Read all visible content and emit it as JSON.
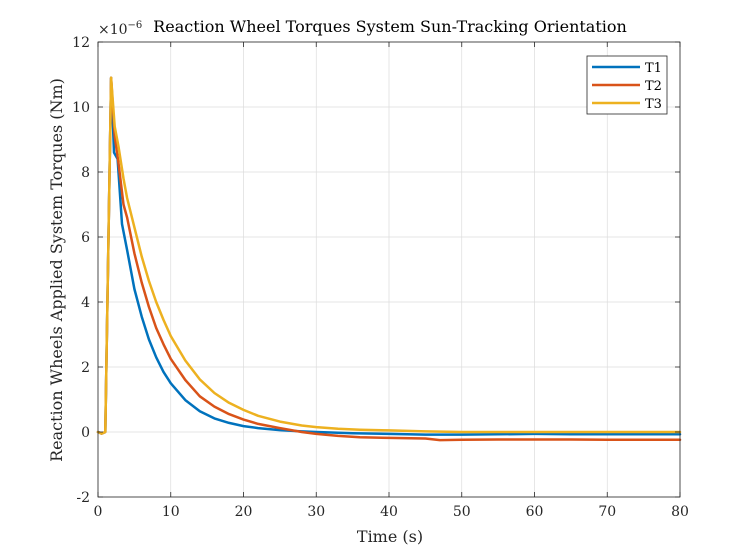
{
  "chart_data": {
    "type": "line",
    "title": "Reaction Wheel Torques System Sun-Tracking Orientation",
    "xlabel": "Time (s)",
    "ylabel": "Reaction Wheels Applied System Torques (Nm)",
    "y_exponent": "×10",
    "y_exponent_power": "−6",
    "xlim": [
      0,
      80
    ],
    "ylim": [
      -2,
      12
    ],
    "xticks": [
      "0",
      "10",
      "20",
      "30",
      "40",
      "50",
      "60",
      "70",
      "80"
    ],
    "yticks": [
      "-2",
      "0",
      "2",
      "4",
      "6",
      "8",
      "10",
      "12"
    ],
    "grid": true,
    "legend": "top-right",
    "series": [
      {
        "name": "T1",
        "color": "#0072BD",
        "points": [
          [
            0,
            0
          ],
          [
            0.5,
            -0.05
          ],
          [
            1.0,
            0.0
          ],
          [
            1.8,
            10.9
          ],
          [
            2.2,
            8.6
          ],
          [
            2.7,
            8.4
          ],
          [
            3.3,
            6.4
          ],
          [
            4,
            5.6
          ],
          [
            5,
            4.4
          ],
          [
            6,
            3.55
          ],
          [
            7,
            2.85
          ],
          [
            8,
            2.3
          ],
          [
            9,
            1.85
          ],
          [
            10,
            1.5
          ],
          [
            12,
            0.98
          ],
          [
            14,
            0.64
          ],
          [
            16,
            0.42
          ],
          [
            18,
            0.28
          ],
          [
            20,
            0.18
          ],
          [
            22,
            0.12
          ],
          [
            25,
            0.06
          ],
          [
            28,
            0.02
          ],
          [
            30,
            0.0
          ],
          [
            35,
            -0.04
          ],
          [
            40,
            -0.06
          ],
          [
            45,
            -0.08
          ],
          [
            50,
            -0.08
          ],
          [
            55,
            -0.07
          ],
          [
            60,
            -0.06
          ],
          [
            65,
            -0.07
          ],
          [
            70,
            -0.07
          ],
          [
            75,
            -0.07
          ],
          [
            80,
            -0.07
          ]
        ]
      },
      {
        "name": "T2",
        "color": "#D95319",
        "points": [
          [
            0,
            0
          ],
          [
            0.5,
            -0.05
          ],
          [
            1.0,
            0.0
          ],
          [
            1.8,
            10.9
          ],
          [
            2.3,
            9.1
          ],
          [
            2.8,
            8.3
          ],
          [
            3.5,
            7.0
          ],
          [
            4,
            6.6
          ],
          [
            5,
            5.5
          ],
          [
            6,
            4.6
          ],
          [
            7,
            3.85
          ],
          [
            8,
            3.2
          ],
          [
            9,
            2.7
          ],
          [
            10,
            2.25
          ],
          [
            12,
            1.6
          ],
          [
            14,
            1.1
          ],
          [
            16,
            0.78
          ],
          [
            18,
            0.55
          ],
          [
            20,
            0.38
          ],
          [
            22,
            0.25
          ],
          [
            25,
            0.12
          ],
          [
            28,
            0.0
          ],
          [
            30,
            -0.06
          ],
          [
            33,
            -0.12
          ],
          [
            36,
            -0.16
          ],
          [
            40,
            -0.18
          ],
          [
            45,
            -0.2
          ],
          [
            47,
            -0.25
          ],
          [
            50,
            -0.24
          ],
          [
            55,
            -0.23
          ],
          [
            60,
            -0.23
          ],
          [
            65,
            -0.23
          ],
          [
            70,
            -0.24
          ],
          [
            75,
            -0.24
          ],
          [
            80,
            -0.24
          ]
        ]
      },
      {
        "name": "T3",
        "color": "#EDB120",
        "points": [
          [
            0,
            0
          ],
          [
            0.5,
            -0.05
          ],
          [
            1.0,
            0.0
          ],
          [
            1.8,
            10.9
          ],
          [
            2.3,
            9.4
          ],
          [
            2.8,
            8.8
          ],
          [
            3.5,
            7.8
          ],
          [
            4,
            7.2
          ],
          [
            5,
            6.3
          ],
          [
            6,
            5.4
          ],
          [
            7,
            4.65
          ],
          [
            8,
            4.0
          ],
          [
            9,
            3.45
          ],
          [
            10,
            2.95
          ],
          [
            12,
            2.2
          ],
          [
            14,
            1.62
          ],
          [
            16,
            1.2
          ],
          [
            18,
            0.9
          ],
          [
            20,
            0.68
          ],
          [
            22,
            0.5
          ],
          [
            25,
            0.32
          ],
          [
            28,
            0.2
          ],
          [
            30,
            0.15
          ],
          [
            33,
            0.1
          ],
          [
            36,
            0.07
          ],
          [
            40,
            0.05
          ],
          [
            45,
            0.02
          ],
          [
            50,
            0.0
          ],
          [
            55,
            0.0
          ],
          [
            60,
            0.0
          ],
          [
            65,
            0.0
          ],
          [
            70,
            0.0
          ],
          [
            75,
            0.0
          ],
          [
            80,
            0.0
          ]
        ]
      }
    ]
  }
}
